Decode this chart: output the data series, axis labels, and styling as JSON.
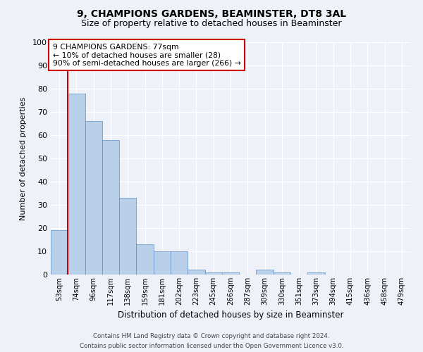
{
  "title1": "9, CHAMPIONS GARDENS, BEAMINSTER, DT8 3AL",
  "title2": "Size of property relative to detached houses in Beaminster",
  "xlabel": "Distribution of detached houses by size in Beaminster",
  "ylabel": "Number of detached properties",
  "bar_labels": [
    "53sqm",
    "74sqm",
    "96sqm",
    "117sqm",
    "138sqm",
    "159sqm",
    "181sqm",
    "202sqm",
    "223sqm",
    "245sqm",
    "266sqm",
    "287sqm",
    "309sqm",
    "330sqm",
    "351sqm",
    "373sqm",
    "394sqm",
    "415sqm",
    "436sqm",
    "458sqm",
    "479sqm"
  ],
  "bar_values": [
    19,
    78,
    66,
    58,
    33,
    13,
    10,
    10,
    2,
    1,
    1,
    0,
    2,
    1,
    0,
    1,
    0,
    0,
    0,
    0,
    0
  ],
  "bar_color": "#b8d0ea",
  "bar_edge_color": "#5b8ec4",
  "background_color": "#eef2f8",
  "grid_color": "#ffffff",
  "ylim": [
    0,
    100
  ],
  "yticks": [
    0,
    10,
    20,
    30,
    40,
    50,
    60,
    70,
    80,
    90,
    100
  ],
  "vline_color": "#cc0000",
  "annotation_text": "9 CHAMPIONS GARDENS: 77sqm\n← 10% of detached houses are smaller (28)\n90% of semi-detached houses are larger (266) →",
  "annotation_box_color": "#ffffff",
  "annotation_box_edge": "#cc0000",
  "footer1": "Contains HM Land Registry data © Crown copyright and database right 2024.",
  "footer2": "Contains public sector information licensed under the Open Government Licence v3.0."
}
